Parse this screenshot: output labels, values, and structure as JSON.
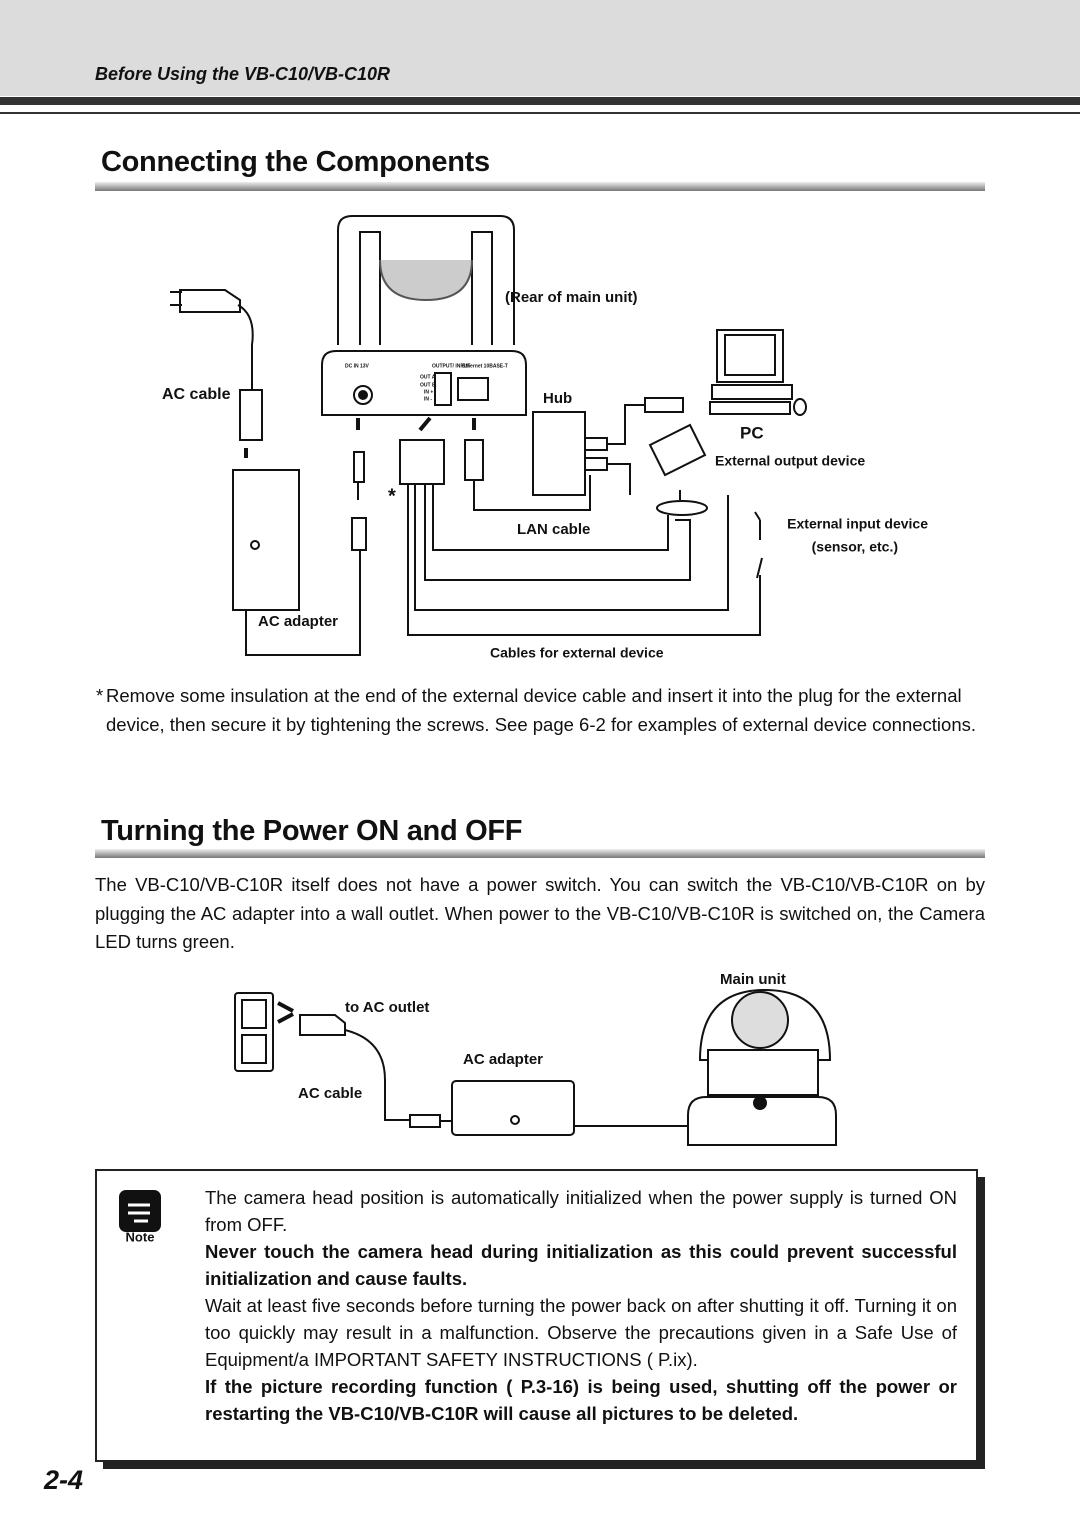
{
  "header": {
    "title": "Before Using the VB-C10/VB-C10R"
  },
  "section1": {
    "title": "Connecting the Components",
    "diagram": {
      "rear_label": "(Rear of main unit)",
      "port_labels": [
        "DC IN 13V",
        "OUTPUT/ INPUT",
        "Ethernet 10BASE-T",
        "OUT A",
        "OUT B",
        "IN +",
        "IN -"
      ],
      "ac_cable": "AC cable",
      "hub": "Hub",
      "pc": "PC",
      "external_output": "External output device",
      "external_input": "External input device",
      "external_input_note": "(sensor, etc.)",
      "asterisk": "*",
      "lan_cable": "LAN cable",
      "ac_adapter": "AC adapter",
      "cables_external": "Cables for external device"
    },
    "footnote": {
      "marker": "*",
      "text": "Remove some insulation at the end of the external device cable and insert it into the plug for the external device, then secure it by tightening the screws. See page 6-2 for examples of external device connections."
    }
  },
  "section2": {
    "title": "Turning the Power ON and OFF",
    "paragraph": "The VB-C10/VB-C10R itself does not have a power switch. You can switch the VB-C10/VB-C10R on by plugging the AC adapter into a wall outlet. When power to the VB-C10/VB-C10R is switched on, the Camera LED turns green.",
    "diagram": {
      "main_unit": "Main unit",
      "to_outlet": "to AC outlet",
      "ac_adapter": "AC adapter",
      "ac_cable": "AC cable"
    }
  },
  "note": {
    "label": "Note",
    "paragraphs": [
      "The camera head position is automatically initialized when the power supply is turned ON from OFF.",
      "Never touch the camera head during initialization as this could prevent successful initialization and cause faults.",
      "Wait at least five seconds before turning the power back on after shutting it off. Turning it on too quickly may result in a malfunction. Observe the precautions given in a Safe Use of Equipment/a IMPORTANT SAFETY INSTRUCTIONS ( P.ix).",
      "If the picture recording function ( P.3-16) is being used, shutting off the power or restarting the VB-C10/VB-C10R will cause all pictures to be deleted."
    ]
  },
  "page_number": "2-4"
}
